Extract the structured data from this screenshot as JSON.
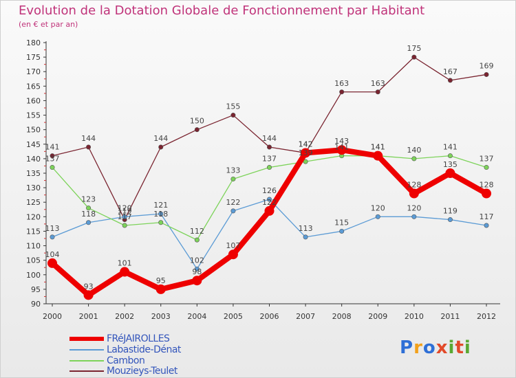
{
  "title": "Evolution de la Dotation Globale de Fonctionnement par Habitant",
  "subtitle": "(en € et par an)",
  "brand": {
    "letters": [
      "P",
      "r",
      "o",
      "x",
      "i",
      "t",
      "i"
    ],
    "colors": [
      "#2e6fd6",
      "#f2a11b",
      "#2e6fd6",
      "#e24a2a",
      "#5aa832",
      "#e24a2a",
      "#5aa832"
    ]
  },
  "chart_data": {
    "type": "line",
    "title": "Evolution de la Dotation Globale de Fonctionnement par Habitant",
    "subtitle": "(en € et par an)",
    "xlabel": "",
    "ylabel": "",
    "x": [
      "2000",
      "2001",
      "2002",
      "2003",
      "2004",
      "2005",
      "2006",
      "2007",
      "2008",
      "2009",
      "2010",
      "2011",
      "2012"
    ],
    "ylim": [
      90,
      180
    ],
    "yticks": [
      "90",
      "95",
      "100",
      "105",
      "110",
      "115",
      "120",
      "125",
      "130",
      "135",
      "140",
      "145",
      "150",
      "155",
      "160",
      "165",
      "170",
      "175",
      "180"
    ],
    "grid": false,
    "legend": "bottom-left",
    "series": [
      {
        "name": "FRéJAIROLLES",
        "color": "#ee0000",
        "values": [
          104,
          93,
          101,
          95,
          98,
          107,
          122,
          142,
          143,
          141,
          128,
          135,
          128
        ],
        "labels": [
          "104",
          "93",
          "101",
          "95",
          "98",
          "107",
          "122",
          "142",
          "143",
          "141",
          "128",
          "135",
          "128"
        ]
      },
      {
        "name": "Labastide-Dénat",
        "color": "#5b9bd5",
        "values": [
          113,
          118,
          120,
          121,
          102,
          122,
          126,
          113,
          115,
          120,
          120,
          119,
          117
        ],
        "labels": [
          "113",
          "118",
          "120",
          "121",
          "102",
          "122",
          "126",
          "113",
          "115",
          "120",
          "120",
          "119",
          "117"
        ]
      },
      {
        "name": "Cambon",
        "color": "#7dd35a",
        "values": [
          137,
          123,
          117,
          118,
          112,
          133,
          137,
          139,
          141,
          141,
          140,
          141,
          137
        ],
        "labels": [
          "137",
          "123",
          "117",
          "118",
          "112",
          "133",
          "137",
          "139",
          "141",
          "141",
          "140",
          "141",
          "137"
        ]
      },
      {
        "name": "Mouzieys-Teulet",
        "color": "#7a2430",
        "values": [
          141,
          144,
          119,
          144,
          150,
          155,
          144,
          142,
          163,
          163,
          175,
          167,
          169
        ],
        "labels": [
          "141",
          "144",
          "119",
          "144",
          "150",
          "155",
          "144",
          "142",
          "163",
          "163",
          "175",
          "167",
          "169"
        ]
      }
    ]
  }
}
